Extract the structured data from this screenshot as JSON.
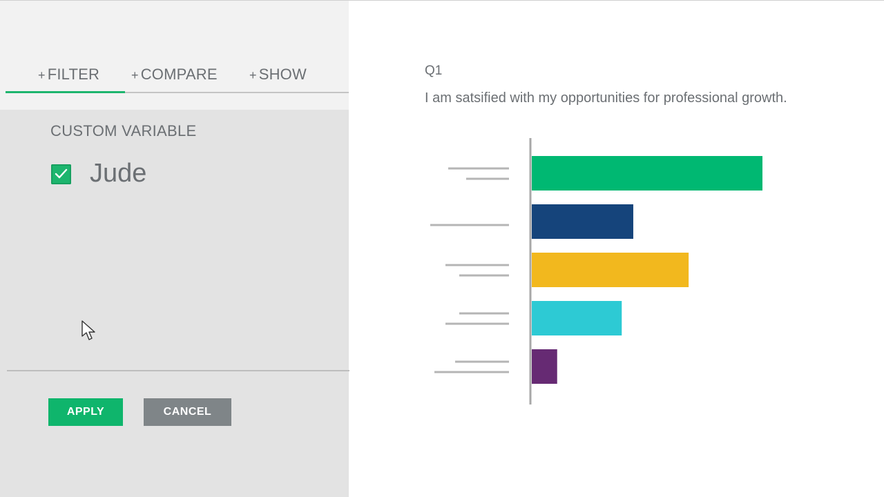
{
  "tabs": [
    {
      "plus": "+",
      "label": "FILTER",
      "active": true
    },
    {
      "plus": "+",
      "label": "COMPARE",
      "active": false
    },
    {
      "plus": "+",
      "label": "SHOW",
      "active": false
    }
  ],
  "filter": {
    "section_title": "CUSTOM VARIABLE",
    "option": {
      "label": "Jude",
      "checked": true
    }
  },
  "buttons": {
    "apply": "APPLY",
    "cancel": "CANCEL"
  },
  "question": {
    "number": "Q1",
    "text": "I am satsified with my opportunities for professional growth."
  },
  "colors": {
    "accent": "#1db56e",
    "apply": "#0fb56c",
    "cancel": "#7f8588",
    "text": "#6b6f73"
  },
  "chart_data": {
    "type": "bar",
    "orientation": "horizontal",
    "categories": [
      "",
      "",
      "",
      "",
      ""
    ],
    "values": [
      100,
      44,
      68,
      39,
      11
    ],
    "colors": [
      "#00b872",
      "#15447b",
      "#f2b81e",
      "#2dcad4",
      "#662a73"
    ],
    "xlim": [
      0,
      100
    ],
    "label_placeholder_lines": [
      2,
      1,
      2,
      2,
      2
    ]
  }
}
